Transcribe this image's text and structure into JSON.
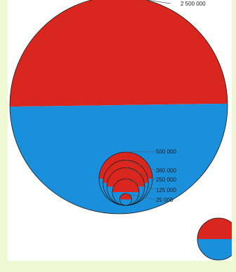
{
  "chart_data": {
    "type": "nested-bubble",
    "colors": {
      "top_half": "#d9271f",
      "bottom_half": "#1a8fdc",
      "outline": "#1a1a1a"
    },
    "circles": [
      {
        "value": 2500000,
        "label": "2 500 000"
      },
      {
        "value": 500000,
        "label": "500 000"
      },
      {
        "value": 360000,
        "label": "360 000"
      },
      {
        "value": 250000,
        "label": "250 000"
      },
      {
        "value": 125000,
        "label": "125 000"
      },
      {
        "value": 25000,
        "label": "25 000"
      }
    ]
  }
}
